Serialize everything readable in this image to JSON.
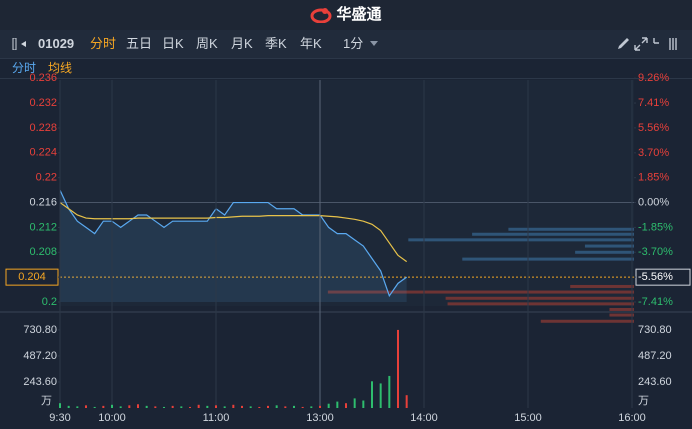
{
  "header": {
    "brand": "华盛通"
  },
  "toolbar": {
    "code": "01029",
    "tabs": [
      "分时",
      "五日",
      "日K",
      "周K",
      "月K",
      "季K",
      "年K"
    ],
    "interval": "1分"
  },
  "subtabs": [
    "分时",
    "均线"
  ],
  "chart_data": [
    {
      "type": "line",
      "x": [
        "9:30",
        "9:35",
        "9:40",
        "9:45",
        "9:50",
        "9:55",
        "10:00",
        "10:05",
        "10:10",
        "10:15",
        "10:20",
        "10:25",
        "10:30",
        "10:35",
        "10:40",
        "10:45",
        "10:50",
        "10:55",
        "11:00",
        "11:05",
        "11:10",
        "11:15",
        "11:20",
        "11:25",
        "11:30",
        "11:35",
        "11:40",
        "11:45",
        "11:50",
        "11:55",
        "13:00",
        "13:05",
        "13:10",
        "13:15",
        "13:20",
        "13:25",
        "13:30",
        "13:35",
        "13:40",
        "13:45",
        "13:50"
      ],
      "series": [
        {
          "color": "#5aa9f0",
          "values": [
            0.218,
            0.215,
            0.213,
            0.212,
            0.211,
            0.213,
            0.213,
            0.212,
            0.213,
            0.214,
            0.214,
            0.213,
            0.212,
            0.213,
            0.213,
            0.213,
            0.213,
            0.213,
            0.215,
            0.214,
            0.216,
            0.216,
            0.216,
            0.216,
            0.216,
            0.215,
            0.215,
            0.215,
            0.214,
            0.214,
            0.214,
            0.212,
            0.211,
            0.211,
            0.21,
            0.209,
            0.207,
            0.205,
            0.201,
            0.203,
            0.204
          ]
        },
        {
          "color": "#e8c34a",
          "values": [
            0.216,
            0.215,
            0.214,
            0.2135,
            0.2134,
            0.2134,
            0.2134,
            0.2134,
            0.2134,
            0.2135,
            0.2135,
            0.2135,
            0.2135,
            0.2135,
            0.2135,
            0.2135,
            0.2135,
            0.2135,
            0.2136,
            0.2136,
            0.2137,
            0.2138,
            0.2138,
            0.2138,
            0.2139,
            0.2139,
            0.2139,
            0.2139,
            0.2139,
            0.2139,
            0.2139,
            0.2138,
            0.2137,
            0.2135,
            0.2133,
            0.213,
            0.2125,
            0.2115,
            0.2095,
            0.2075,
            0.2065
          ]
        }
      ],
      "ylim": [
        0.2,
        0.2362
      ],
      "yticks": [
        0.236,
        0.232,
        0.228,
        0.224,
        0.22,
        0.216,
        0.212,
        0.208,
        0.204,
        0.2
      ],
      "y2lim": [
        -7.41,
        9.35
      ],
      "y2ticks": [
        {
          "value": 9.26,
          "label": "9.26%"
        },
        {
          "value": 7.41,
          "label": "7.41%"
        },
        {
          "value": 5.56,
          "label": "5.56%"
        },
        {
          "value": 3.7,
          "label": "3.70%"
        },
        {
          "value": 1.85,
          "label": "1.85%"
        },
        {
          "value": 0,
          "label": "0.00%"
        },
        {
          "value": -1.85,
          "label": "-1.85%"
        },
        {
          "value": -3.7,
          "label": "-3.70%"
        },
        {
          "value": -5.56,
          "label": "-5.56%"
        },
        {
          "value": -7.41,
          "label": "-7.41%"
        }
      ],
      "prev_close": 0.216,
      "current_price": 0.204,
      "current_change": -5.56,
      "up_color": "#e8403a",
      "down_color": "#2ebd6e",
      "flat_color": "#d0d6de",
      "depth": {
        "xlim": [
          0,
          320
        ],
        "blue": {
          "prices": [
            0.2117,
            0.2109,
            0.21,
            0.209,
            0.208,
            0.2069
          ],
          "values": [
            128,
            165,
            230,
            50,
            60,
            175
          ]
        },
        "red": {
          "prices": [
            0.2025,
            0.2016,
            0.2006,
            0.1997,
            0.1988,
            0.1979,
            0.1969
          ],
          "values": [
            65,
            312,
            192,
            190,
            25,
            25,
            95
          ]
        }
      }
    },
    {
      "type": "bar",
      "x": [
        "9:30",
        "9:35",
        "9:40",
        "9:45",
        "9:50",
        "9:55",
        "10:00",
        "10:05",
        "10:10",
        "10:15",
        "10:20",
        "10:25",
        "10:30",
        "10:35",
        "10:40",
        "10:45",
        "10:50",
        "10:55",
        "11:00",
        "11:05",
        "11:10",
        "11:15",
        "11:20",
        "11:25",
        "11:30",
        "11:35",
        "11:40",
        "11:45",
        "11:50",
        "11:55",
        "13:00",
        "13:05",
        "13:10",
        "13:15",
        "13:20",
        "13:25",
        "13:30",
        "13:35",
        "13:40",
        "13:45",
        "13:50"
      ],
      "values": [
        45,
        20,
        15,
        25,
        10,
        20,
        30,
        15,
        25,
        35,
        20,
        15,
        10,
        20,
        15,
        10,
        30,
        20,
        25,
        15,
        30,
        20,
        15,
        10,
        20,
        25,
        15,
        20,
        10,
        15,
        20,
        40,
        60,
        45,
        90,
        70,
        250,
        230,
        300,
        730.8,
        120
      ],
      "colors": [
        "#2ebd6e",
        "#2ebd6e",
        "#2ebd6e",
        "#e8403a",
        "#2ebd6e",
        "#e8403a",
        "#2ebd6e",
        "#2ebd6e",
        "#e8403a",
        "#e8403a",
        "#2ebd6e",
        "#e8403a",
        "#2ebd6e",
        "#e8403a",
        "#2ebd6e",
        "#e8403a",
        "#e8403a",
        "#2ebd6e",
        "#e8403a",
        "#2ebd6e",
        "#e8403a",
        "#e8403a",
        "#2ebd6e",
        "#e8403a",
        "#e8403a",
        "#2ebd6e",
        "#e8403a",
        "#2ebd6e",
        "#e8403a",
        "#2ebd6e",
        "#e8403a",
        "#2ebd6e",
        "#2ebd6e",
        "#e8403a",
        "#2ebd6e",
        "#2ebd6e",
        "#2ebd6e",
        "#2ebd6e",
        "#2ebd6e",
        "#e8403a",
        "#e8403a"
      ],
      "unit": "万",
      "ylim": [
        0,
        805
      ],
      "yticks": [
        {
          "value": 730.8,
          "label": "730.80"
        },
        {
          "value": 487.2,
          "label": "487.20"
        },
        {
          "value": 243.6,
          "label": "243.60"
        }
      ],
      "xticks": [
        "9:30",
        "10:00",
        "11:00",
        "13:00",
        "14:00",
        "15:00",
        "16:00"
      ]
    }
  ]
}
